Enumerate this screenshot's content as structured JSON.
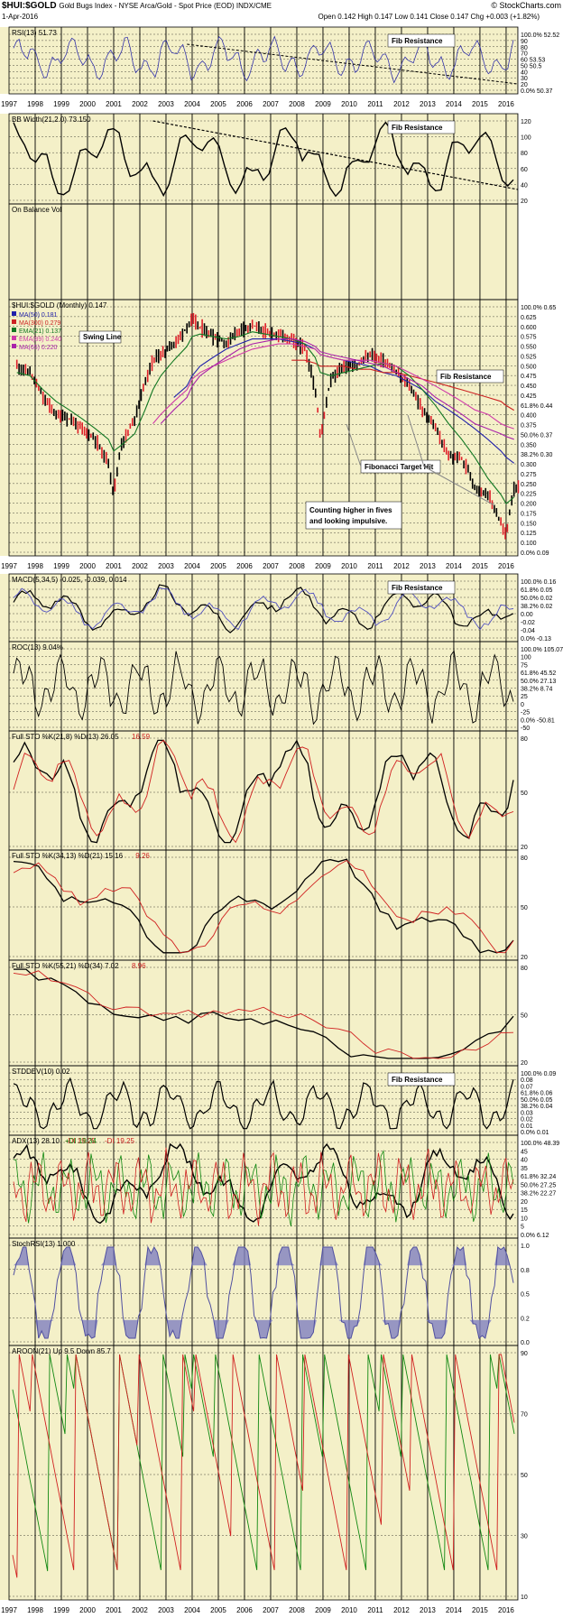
{
  "header": {
    "symbol": "$HUI:$GOLD",
    "subtitle": "Gold Bugs Index - NYSE Arca/Gold - Spot Price (EOD) INDX/CME",
    "date": "1-Apr-2016",
    "ohlc": "Open 0.142  High 0.147  Low 0.141  Close 0.147  Chg +0.003 (+1.82%)",
    "logo": "© StockCharts.com"
  },
  "x_axis_years": [
    "1997",
    "1998",
    "1999",
    "2000",
    "2001",
    "2002",
    "2003",
    "2004",
    "2005",
    "2006",
    "2007",
    "2008",
    "2009",
    "2010",
    "2011",
    "2012",
    "2013",
    "2014",
    "2015",
    "2016"
  ],
  "colors": {
    "background": "#f4f0c8",
    "price_up": "#000000",
    "price_down": "#e0202a",
    "ma50": "#2222aa",
    "ma300": "#cc2222",
    "ema21": "#117722",
    "ema89": "#d03aa8",
    "ma65": "#aa22aa",
    "stoch_fill": "#8080c0"
  },
  "panels": [
    {
      "key": "rsi",
      "label": "RSI(13) 51.73",
      "ticks": [
        "100.0% 52.52",
        "90",
        "80",
        "70",
        "60 53.53",
        "50 50.5",
        "40",
        "30",
        "20",
        "0.0% 50.37"
      ],
      "annotation": "Fib Resistance"
    },
    {
      "key": "bbw",
      "label": "BB Width(21,2.0) 73.150",
      "ticks": [
        "120",
        "100",
        "80",
        "60",
        "40",
        "20"
      ],
      "annotation": "Fib Resistance"
    },
    {
      "key": "obv",
      "label": "On Balance Vol",
      "ticks": []
    },
    {
      "key": "price",
      "label": "$HUI:$GOLD (Monthly) 0.147",
      "legend": [
        "MA(50) 0.181",
        "MA(300) 0.279",
        "EMA(21) 0.137",
        "EMA(89) 0.240",
        "MA(65) 0.220"
      ],
      "ticks": [
        "100.0% 0.65",
        "0.625",
        "0.600",
        "0.575",
        "0.550",
        "0.525",
        "0.500",
        "0.475",
        "0.450",
        "0.425",
        "61.8% 0.44",
        "0.400",
        "0.375",
        "50.0% 0.37",
        "0.350",
        "38.2% 0.30",
        "0.300",
        "0.275",
        "0.250",
        "0.225",
        "0.200",
        "0.175",
        "0.150",
        "0.125",
        "0.100",
        "0.0% 0.09"
      ],
      "annotations": [
        "Swing Line",
        "Fib Resistance",
        "Fibonacci Target Hit",
        "Counting higher in fives",
        "and looking impulsive."
      ]
    },
    {
      "key": "macd",
      "label": "MACD(5,34,5) -0.025, -0.039, 0.014",
      "ticks": [
        "100.0% 0.16",
        "61.8% 0.05",
        "50.0% 0.02",
        "38.2% 0.02",
        "0.00",
        "-0.02",
        "-0.04",
        "0.0% -0.13"
      ],
      "annotation": "Fib Resistance"
    },
    {
      "key": "roc",
      "label": "ROC(13) 9.04%",
      "ticks": [
        "100.0% 105.07",
        "100",
        "75",
        "61.8% 45.52",
        "50.0% 27.13",
        "38.2% 8.74",
        "25",
        "0",
        "-25",
        "0.0% -50.81",
        "-50"
      ]
    },
    {
      "key": "sto1",
      "label": "Full STO %K(21,8) %D(13) 26.05",
      "label_red": "16.59",
      "ticks": [
        "80",
        "50",
        "20"
      ]
    },
    {
      "key": "sto2",
      "label": "Full STO %K(34,13) %D(21) 15.16",
      "label_red": "9.26",
      "ticks": [
        "80",
        "50",
        "20"
      ]
    },
    {
      "key": "sto3",
      "label": "Full STO %K(55,21) %D(34) 7.02",
      "label_red": "8.96",
      "ticks": [
        "80",
        "50",
        "20"
      ]
    },
    {
      "key": "stdev",
      "label": "STDDEV(10) 0.02",
      "ticks": [
        "100.0% 0.09",
        "0.08",
        "0.07",
        "61.8% 0.06",
        "50.0% 0.05",
        "38.2% 0.04",
        "0.03",
        "0.02",
        "0.01",
        "0.0% 0.01"
      ],
      "annotation": "Fib Resistance"
    },
    {
      "key": "adx",
      "label": "ADX(13) 28.10",
      "label_green": "+DI 19.34",
      "label_red": "-DI 19.25",
      "ticks": [
        "100.0% 48.39",
        "45",
        "40",
        "35",
        "61.8% 32.24",
        "50.0% 27.25",
        "38.2% 22.27",
        "20",
        "15",
        "10",
        "5",
        "0.0% 6.12"
      ]
    },
    {
      "key": "srsi",
      "label": "StochRSI(13) 1.000",
      "ticks": [
        "1.0",
        "0.8",
        "0.5",
        "0.2",
        "0.0"
      ]
    },
    {
      "key": "aroon",
      "label": "AROON(21) Up 9.5 Down 85.7",
      "ticks": [
        "90",
        "70",
        "50",
        "30",
        "10"
      ]
    }
  ],
  "chart_data": {
    "type": "line",
    "title": "$HUI:$GOLD Gold Bugs Index - NYSE Arca/Gold - Spot Price (EOD)",
    "x": [
      1997.3,
      1997.8,
      1998.3,
      1998.8,
      1999.3,
      1999.8,
      2000.3,
      2000.8,
      2001.0,
      2001.3,
      2001.8,
      2002.2,
      2002.5,
      2002.8,
      2003.3,
      2003.8,
      2004.0,
      2004.3,
      2004.8,
      2005.3,
      2005.8,
      2006.3,
      2006.8,
      2007.3,
      2007.8,
      2008.3,
      2008.7,
      2008.9,
      2009.3,
      2009.8,
      2010.3,
      2010.8,
      2011.3,
      2011.8,
      2012.3,
      2012.8,
      2013.3,
      2013.8,
      2014.3,
      2014.8,
      2015.3,
      2015.8,
      2016.0,
      2016.3
    ],
    "series": [
      {
        "name": "$HUI:$GOLD (Monthly) 0.147",
        "values": [
          0.4,
          0.38,
          0.31,
          0.27,
          0.26,
          0.24,
          0.22,
          0.18,
          0.14,
          0.21,
          0.26,
          0.35,
          0.42,
          0.44,
          0.48,
          0.55,
          0.59,
          0.55,
          0.51,
          0.48,
          0.54,
          0.56,
          0.53,
          0.52,
          0.5,
          0.46,
          0.33,
          0.22,
          0.36,
          0.4,
          0.4,
          0.44,
          0.42,
          0.38,
          0.34,
          0.28,
          0.24,
          0.19,
          0.19,
          0.15,
          0.14,
          0.11,
          0.1,
          0.147
        ]
      },
      {
        "name": "MA(50) 0.181",
        "values": [
          null,
          null,
          null,
          null,
          null,
          null,
          null,
          null,
          null,
          null,
          null,
          null,
          null,
          null,
          0.31,
          0.34,
          0.37,
          0.4,
          0.43,
          0.46,
          0.48,
          0.5,
          0.5,
          0.5,
          0.49,
          0.48,
          0.46,
          0.44,
          0.43,
          0.42,
          0.41,
          0.4,
          0.38,
          0.37,
          0.35,
          0.33,
          0.3,
          0.28,
          0.26,
          0.24,
          0.22,
          0.2,
          0.19,
          0.181
        ]
      },
      {
        "name": "MA(300) 0.279",
        "values": [
          null,
          null,
          null,
          null,
          null,
          null,
          null,
          null,
          null,
          null,
          null,
          null,
          null,
          null,
          null,
          null,
          null,
          null,
          null,
          null,
          null,
          null,
          null,
          null,
          0.42,
          0.42,
          0.41,
          0.4,
          0.4,
          0.4,
          0.39,
          0.39,
          0.38,
          0.38,
          0.37,
          0.36,
          0.35,
          0.34,
          0.33,
          0.32,
          0.31,
          0.3,
          0.29,
          0.279
        ]
      },
      {
        "name": "EMA(21) 0.137",
        "values": [
          0.38,
          0.37,
          0.33,
          0.3,
          0.28,
          0.26,
          0.24,
          0.22,
          0.2,
          0.21,
          0.23,
          0.28,
          0.33,
          0.37,
          0.42,
          0.47,
          0.51,
          0.52,
          0.51,
          0.5,
          0.51,
          0.53,
          0.52,
          0.51,
          0.5,
          0.48,
          0.43,
          0.38,
          0.37,
          0.38,
          0.39,
          0.4,
          0.41,
          0.4,
          0.37,
          0.33,
          0.29,
          0.25,
          0.22,
          0.19,
          0.16,
          0.14,
          0.13,
          0.137
        ]
      },
      {
        "name": "EMA(89) 0.240",
        "values": [
          null,
          null,
          null,
          null,
          null,
          null,
          null,
          null,
          null,
          null,
          null,
          null,
          0.25,
          0.27,
          0.3,
          0.33,
          0.36,
          0.38,
          0.4,
          0.42,
          0.44,
          0.46,
          0.47,
          0.48,
          0.48,
          0.47,
          0.46,
          0.44,
          0.43,
          0.42,
          0.42,
          0.42,
          0.41,
          0.4,
          0.38,
          0.36,
          0.34,
          0.32,
          0.3,
          0.28,
          0.27,
          0.25,
          0.245,
          0.24
        ]
      },
      {
        "name": "MA(65) 0.220",
        "values": [
          null,
          null,
          null,
          null,
          null,
          null,
          null,
          null,
          null,
          null,
          null,
          null,
          null,
          0.25,
          0.28,
          0.31,
          0.34,
          0.37,
          0.4,
          0.43,
          0.46,
          0.48,
          0.49,
          0.5,
          0.5,
          0.49,
          0.47,
          0.45,
          0.44,
          0.43,
          0.42,
          0.41,
          0.4,
          0.38,
          0.36,
          0.34,
          0.31,
          0.29,
          0.27,
          0.25,
          0.24,
          0.23,
          0.225,
          0.22
        ]
      }
    ],
    "xlabel": "",
    "ylabel": "",
    "ylim": [
      0.09,
      0.65
    ],
    "grid": true
  }
}
